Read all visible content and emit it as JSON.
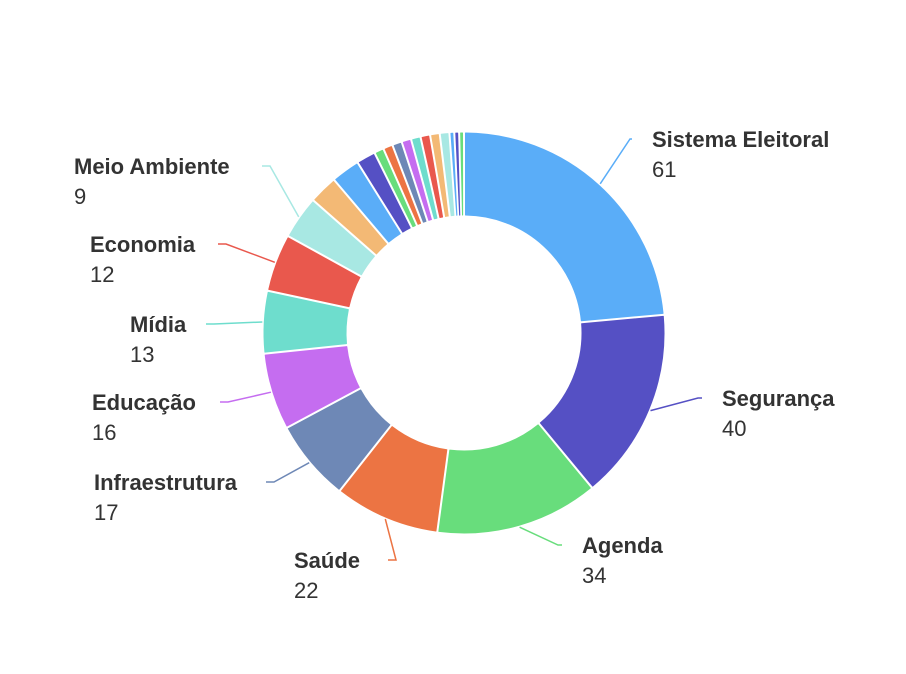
{
  "chart_data": {
    "type": "pie",
    "donut": true,
    "title": "",
    "slices": [
      {
        "label": "Sistema Eleitoral",
        "value": 61,
        "color": "#5AADF8"
      },
      {
        "label": "Segurança",
        "value": 40,
        "color": "#5550C4"
      },
      {
        "label": "Agenda",
        "value": 34,
        "color": "#68DD7C"
      },
      {
        "label": "Saúde",
        "value": 22,
        "color": "#EC7443"
      },
      {
        "label": "Infraestrutura",
        "value": 17,
        "color": "#6E88B6"
      },
      {
        "label": "Educação",
        "value": 16,
        "color": "#C56DF0"
      },
      {
        "label": "Mídia",
        "value": 13,
        "color": "#6EDDCD"
      },
      {
        "label": "Economia",
        "value": 12,
        "color": "#E9584D"
      },
      {
        "label": "Meio Ambiente",
        "value": 9,
        "color": "#A8E8E3"
      },
      {
        "label": "",
        "value": 6,
        "color": "#F3B975"
      },
      {
        "label": "",
        "value": 6,
        "color": "#5AADF8"
      },
      {
        "label": "",
        "value": 4,
        "color": "#5550C4"
      },
      {
        "label": "",
        "value": 2,
        "color": "#68DD7C"
      },
      {
        "label": "",
        "value": 2,
        "color": "#EC7443"
      },
      {
        "label": "",
        "value": 2,
        "color": "#6E88B6"
      },
      {
        "label": "",
        "value": 2,
        "color": "#C56DF0"
      },
      {
        "label": "",
        "value": 2,
        "color": "#6EDDCD"
      },
      {
        "label": "",
        "value": 2,
        "color": "#E9584D"
      },
      {
        "label": "",
        "value": 2,
        "color": "#F3B975"
      },
      {
        "label": "",
        "value": 2,
        "color": "#A8E8E3"
      },
      {
        "label": "",
        "value": 1,
        "color": "#5AADF8"
      },
      {
        "label": "",
        "value": 1,
        "color": "#5550C4"
      },
      {
        "label": "",
        "value": 1,
        "color": "#68DD7C"
      }
    ]
  }
}
